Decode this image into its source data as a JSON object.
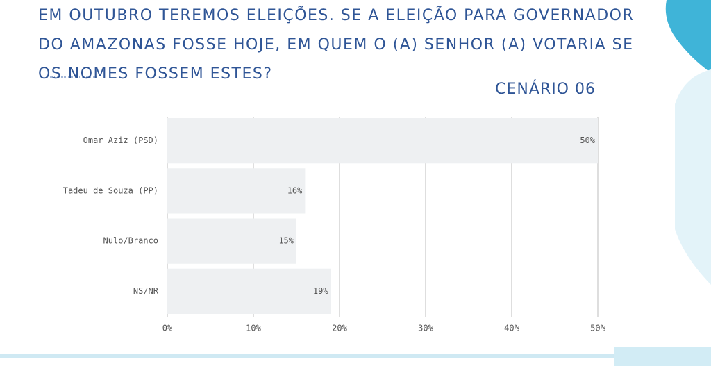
{
  "chart_data": {
    "type": "bar",
    "orientation": "horizontal",
    "title": "EM OUTUBRO TEREMOS ELEIÇÕES. SE A ELEIÇÃO PARA GOVERNADOR DO AMAZONAS FOSSE HOJE, EM QUEM O (A) SENHOR (A) VOTARIA SE OS NOMES FOSSEM ESTES?",
    "subtitle": "CENÁRIO 06",
    "categories": [
      "Omar Aziz (PSD)",
      "Tadeu de Souza (PP)",
      "Nulo/Branco",
      "NS/NR"
    ],
    "values": [
      50,
      16,
      15,
      19
    ],
    "value_labels": [
      "50%",
      "16%",
      "15%",
      "19%"
    ],
    "color": "#eef0f2",
    "xlim": [
      0,
      50
    ],
    "xticks": [
      {
        "value": 0,
        "label": "0%"
      },
      {
        "value": 10,
        "label": "10%"
      },
      {
        "value": 20,
        "label": "20%"
      },
      {
        "value": 30,
        "label": "30%"
      },
      {
        "value": 40,
        "label": "40%"
      },
      {
        "value": 50,
        "label": "50%"
      }
    ],
    "grid": true
  }
}
